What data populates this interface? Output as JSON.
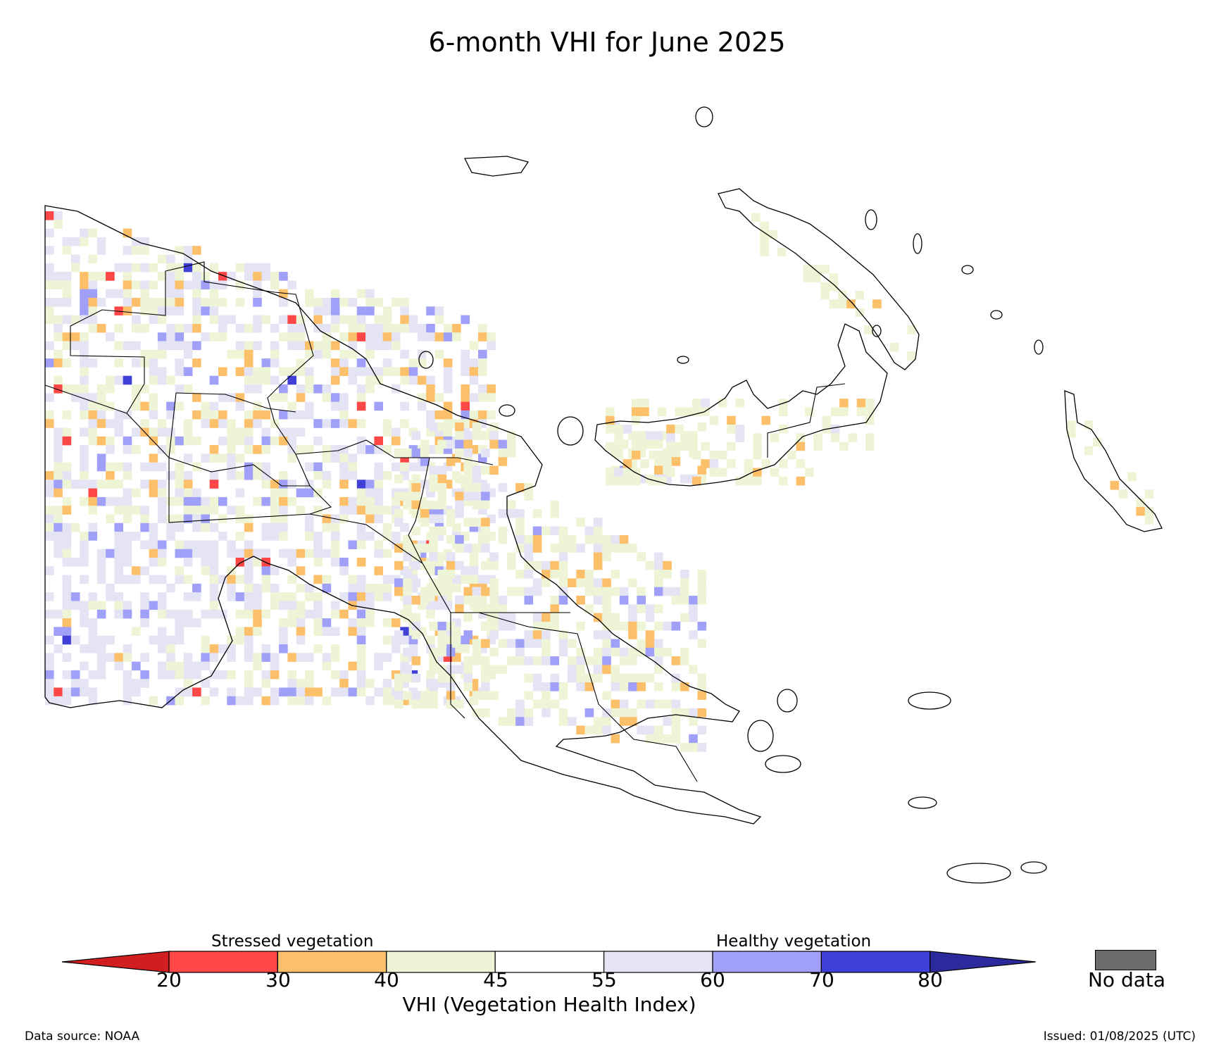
{
  "title": "6-month VHI for June 2025",
  "colorbar": {
    "left_caption": "Stressed vegetation",
    "right_caption": "Healthy vegetation",
    "axis_label": "VHI (Vegetation Health Index)",
    "ticks": [
      "20",
      "30",
      "40",
      "45",
      "55",
      "60",
      "70",
      "80"
    ],
    "bins": [
      {
        "range": "<20",
        "color": "#d11f1f"
      },
      {
        "range": "20-30",
        "color": "#ff4747"
      },
      {
        "range": "30-40",
        "color": "#fdc06a"
      },
      {
        "range": "40-45",
        "color": "#eef5d6"
      },
      {
        "range": "45-55",
        "color": "#ffffff"
      },
      {
        "range": "55-60",
        "color": "#e4e4f4"
      },
      {
        "range": "60-70",
        "color": "#a0a0f8"
      },
      {
        "range": "70-80",
        "color": "#4040d8"
      },
      {
        "range": ">80",
        "color": "#2a2a9c"
      }
    ],
    "no_data_label": "No data",
    "no_data_color": "#6b6b6b"
  },
  "footer": {
    "source": "Data source: NOAA",
    "issued": "Issued: 01/08/2025 (UTC)"
  }
}
